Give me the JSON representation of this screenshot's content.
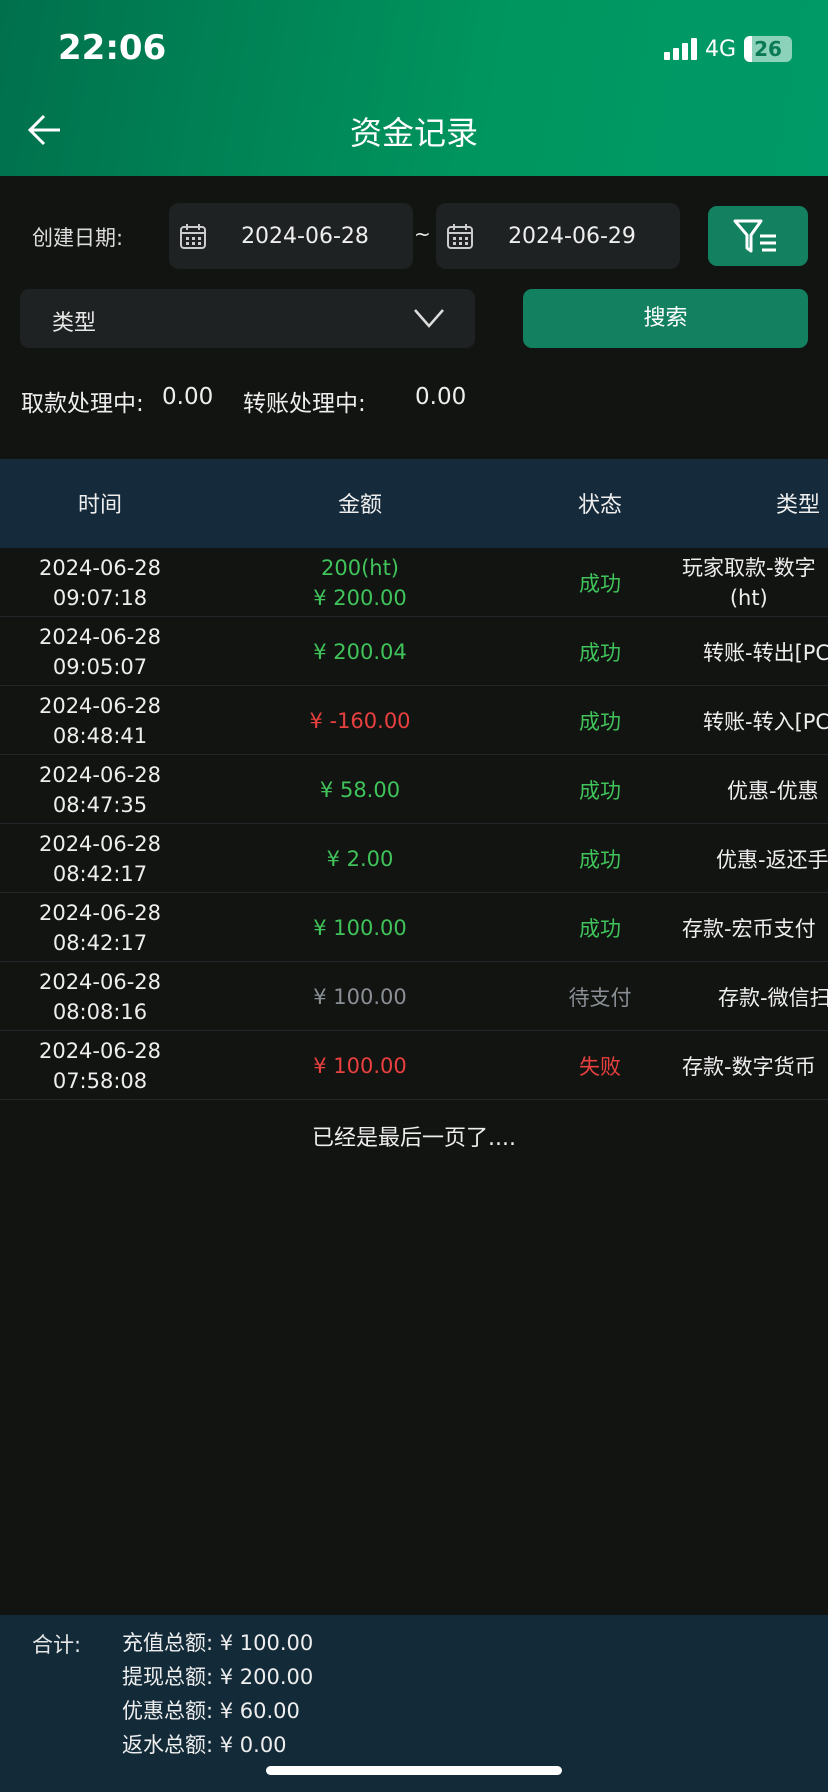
{
  "status_bar": {
    "time": "22:06",
    "network": "4G",
    "battery": "26"
  },
  "header": {
    "title": "资金记录"
  },
  "filters": {
    "date_label": "创建日期:",
    "start_date": "2024-06-28",
    "separator": "~",
    "end_date": "2024-06-29",
    "type_label": "类型",
    "search_label": "搜索"
  },
  "pending": {
    "withdraw_label": "取款处理中:",
    "withdraw_value": "0.00",
    "transfer_label": "转账处理中:",
    "transfer_value": "0.00"
  },
  "table": {
    "headers": [
      "时间",
      "金额",
      "状态",
      "类型"
    ],
    "rows": [
      {
        "date": "2024-06-28",
        "time": "09:07:18",
        "amount_sub": "200(ht)",
        "amount": "¥ 200.00",
        "amount_color": "#3fc35a",
        "status": "成功",
        "status_color": "#3fc35a",
        "type": "玩家取款-数字",
        "type_sub": "(ht)"
      },
      {
        "date": "2024-06-28",
        "time": "09:05:07",
        "amount": "¥ 200.04",
        "amount_color": "#3fc35a",
        "status": "成功",
        "status_color": "#3fc35a",
        "type": "转账-转出[PC"
      },
      {
        "date": "2024-06-28",
        "time": "08:48:41",
        "amount": "¥ -160.00",
        "amount_color": "#e8403f",
        "status": "成功",
        "status_color": "#3fc35a",
        "type": "转账-转入[PC"
      },
      {
        "date": "2024-06-28",
        "time": "08:47:35",
        "amount": "¥ 58.00",
        "amount_color": "#3fc35a",
        "status": "成功",
        "status_color": "#3fc35a",
        "type": "优惠-优惠"
      },
      {
        "date": "2024-06-28",
        "time": "08:42:17",
        "amount": "¥ 2.00",
        "amount_color": "#3fc35a",
        "status": "成功",
        "status_color": "#3fc35a",
        "type": "优惠-返还手"
      },
      {
        "date": "2024-06-28",
        "time": "08:42:17",
        "amount": "¥ 100.00",
        "amount_color": "#3fc35a",
        "status": "成功",
        "status_color": "#3fc35a",
        "type": "存款-宏币支付"
      },
      {
        "date": "2024-06-28",
        "time": "08:08:16",
        "amount": "¥ 100.00",
        "amount_color": "#8a8f95",
        "status": "待支付",
        "status_color": "#8a8f95",
        "type": "存款-微信扫"
      },
      {
        "date": "2024-06-28",
        "time": "07:58:08",
        "amount": "¥ 100.00",
        "amount_color": "#e8403f",
        "status": "失败",
        "status_color": "#e8403f",
        "type": "存款-数字货币"
      }
    ]
  },
  "end_message": "已经是最后一页了....",
  "footer": {
    "label": "合计:",
    "lines": [
      "充值总额: ¥ 100.00",
      "提现总额: ¥ 200.00",
      "优惠总额: ¥ 60.00",
      "返水总额: ¥ 0.00"
    ]
  }
}
